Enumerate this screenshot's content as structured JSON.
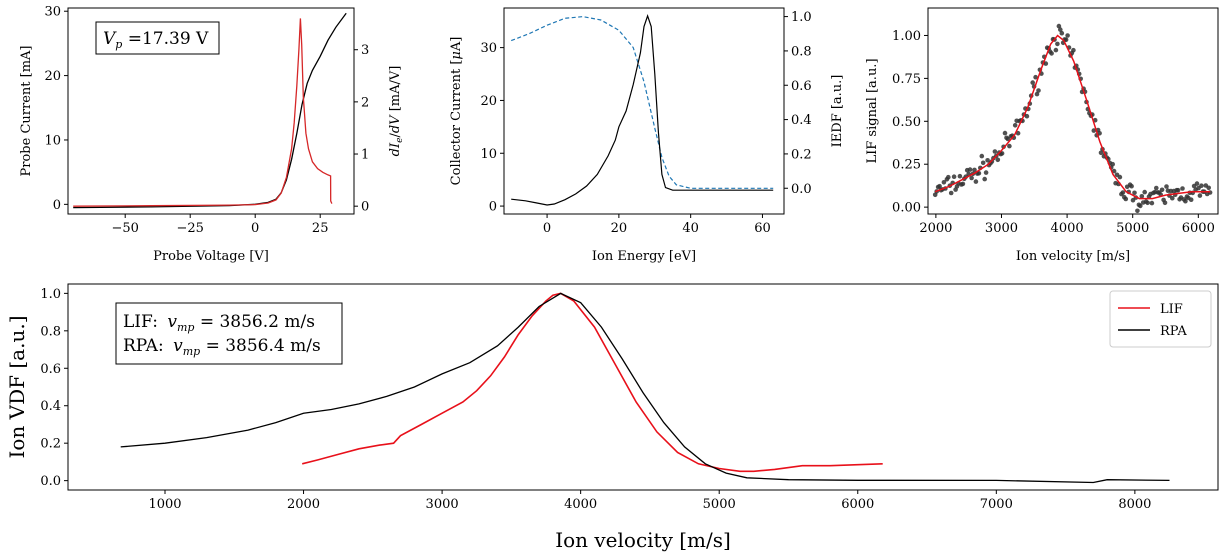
{
  "colors": {
    "red": "#d62728",
    "red2": "#e8101a",
    "black": "#000000",
    "blue": "#1f77b4",
    "scatter": "#333333"
  },
  "chart_data": [
    {
      "type": "line",
      "id": "probe",
      "xlabel": "Probe Voltage [V]",
      "ylabel": "Probe Current [mA]",
      "ylabel2_parts": {
        "d": "d",
        "I": "I",
        "sub": "e",
        "slash": "/",
        "d2": "d",
        "V": "V",
        "unit": " [mA/V]"
      },
      "annotation": {
        "sym": "V",
        "sub": "p",
        "text": " =17.39 V"
      },
      "xlim": [
        -72,
        38
      ],
      "ylim": [
        -1.5,
        30.5
      ],
      "y2lim": [
        -0.15,
        3.8
      ],
      "xticks": [
        -75,
        -50,
        -25,
        0,
        25
      ],
      "xtick_labels": [
        "−75",
        "−50",
        "−25",
        "0",
        "25"
      ],
      "yticks": [
        0,
        10,
        20,
        30
      ],
      "ytick_labels": [
        "0",
        "10",
        "20",
        "30"
      ],
      "y2ticks": [
        0,
        1,
        2,
        3
      ],
      "y2tick_labels": [
        "0",
        "1",
        "2",
        "3"
      ],
      "series": [
        {
          "axis": "left",
          "color": "black",
          "x": [
            -70,
            -40,
            -10,
            0,
            5,
            8,
            10,
            12,
            14,
            16,
            18,
            20,
            22,
            25,
            28,
            31,
            35
          ],
          "y": [
            -0.5,
            -0.4,
            -0.2,
            0,
            0.3,
            0.8,
            1.8,
            3.8,
            7,
            11,
            15.5,
            18.8,
            20.8,
            23,
            25.5,
            27.5,
            29.7
          ]
        },
        {
          "axis": "right",
          "color": "red",
          "x": [
            -70,
            -40,
            -10,
            0,
            5,
            8,
            10,
            12,
            14,
            15,
            16,
            16.8,
            17.39,
            17.9,
            18.5,
            19.5,
            20.5,
            22,
            24,
            26,
            28,
            29,
            29.05,
            29.5
          ],
          "y": [
            0,
            0.01,
            0.02,
            0.03,
            0.06,
            0.12,
            0.25,
            0.55,
            1.1,
            1.6,
            2.3,
            3.0,
            3.6,
            3.1,
            2.1,
            1.4,
            1.1,
            0.85,
            0.72,
            0.65,
            0.6,
            0.58,
            0.1,
            0.05
          ]
        }
      ]
    },
    {
      "type": "line",
      "id": "rpa",
      "xlabel": "Ion Energy [eV]",
      "ylabel_parts": {
        "pre": "Collector Current [",
        "mu": "μ",
        "post": "A]"
      },
      "ylabel2": "IEDF [a.u.]",
      "xlim": [
        -12,
        66
      ],
      "ylim": [
        -1.5,
        37.5
      ],
      "y2lim": [
        -0.15,
        1.05
      ],
      "xticks": [
        0,
        20,
        40,
        60
      ],
      "xtick_labels": [
        "0",
        "20",
        "40",
        "60"
      ],
      "yticks": [
        0,
        10,
        20,
        30
      ],
      "ytick_labels": [
        "0",
        "10",
        "20",
        "30"
      ],
      "y2ticks": [
        0,
        0.2,
        0.4,
        0.6,
        0.8,
        1.0
      ],
      "y2tick_labels": [
        "0.0",
        "0.2",
        "0.4",
        "0.6",
        "0.8",
        "1.0"
      ],
      "series": [
        {
          "axis": "right",
          "color": "blue",
          "dashed": true,
          "x": [
            -10,
            -5,
            0,
            5,
            10,
            15,
            20,
            24,
            27,
            30,
            32,
            34,
            36,
            40,
            50,
            63
          ],
          "y": [
            0.86,
            0.9,
            0.95,
            0.99,
            1.0,
            0.98,
            0.92,
            0.82,
            0.62,
            0.35,
            0.18,
            0.07,
            0.02,
            0.0,
            0.0,
            0.0
          ]
        },
        {
          "axis": "left",
          "color": "black",
          "x": [
            -10,
            -6,
            -3,
            0,
            2,
            5,
            8,
            11,
            14,
            17,
            19,
            20,
            22,
            24,
            26,
            27,
            28,
            29,
            30,
            31,
            32,
            33,
            35,
            40,
            50,
            60,
            63
          ],
          "y": [
            1.3,
            1.0,
            0.6,
            0.2,
            0.4,
            1.2,
            2.3,
            3.8,
            6,
            9.5,
            12.5,
            15,
            18,
            23,
            29,
            34,
            36,
            34,
            25,
            14,
            6,
            3.5,
            3.0,
            3.0,
            3.0,
            3.0,
            3.0
          ]
        }
      ]
    },
    {
      "type": "scatter",
      "id": "lif",
      "xlabel": "Ion velocity [m/s]",
      "ylabel": "LIF signal [a.u.]",
      "xlim": [
        1880,
        6300
      ],
      "ylim": [
        -0.04,
        1.16
      ],
      "xticks": [
        2000,
        3000,
        4000,
        5000,
        6000
      ],
      "xtick_labels": [
        "2000",
        "3000",
        "4000",
        "5000",
        "6000"
      ],
      "yticks": [
        0,
        0.25,
        0.5,
        0.75,
        1.0
      ],
      "ytick_labels": [
        "0.00",
        "0.25",
        "0.50",
        "0.75",
        "1.00"
      ],
      "fit": {
        "color": "red2",
        "x": [
          1990,
          2200,
          2400,
          2600,
          2800,
          3000,
          3200,
          3400,
          3600,
          3750,
          3856,
          3950,
          4100,
          4300,
          4500,
          4700,
          4900,
          5100,
          5300,
          5500,
          5700,
          5900,
          6100,
          6180
        ],
        "y": [
          0.09,
          0.12,
          0.16,
          0.2,
          0.25,
          0.33,
          0.42,
          0.58,
          0.8,
          0.95,
          1.0,
          0.97,
          0.85,
          0.62,
          0.38,
          0.19,
          0.09,
          0.05,
          0.05,
          0.07,
          0.08,
          0.09,
          0.09,
          0.09
        ]
      },
      "scatter": {
        "color": "scatter",
        "x_min": 1990,
        "x_max": 6180,
        "count": 190,
        "noise": 0.055
      }
    },
    {
      "type": "line",
      "id": "vdf",
      "xlabel": "Ion velocity [m/s]",
      "ylabel": "Ion VDF [a.u.]",
      "annotation_lines": [
        {
          "label": "LIF:",
          "sym": "v",
          "sub": "mp",
          "val": " = 3856.2 m/s"
        },
        {
          "label": "RPA:",
          "sym": "v",
          "sub": "mp",
          "val": " = 3856.4 m/s"
        }
      ],
      "xlim": [
        300,
        8600
      ],
      "ylim": [
        -0.05,
        1.05
      ],
      "xticks": [
        1000,
        2000,
        3000,
        4000,
        5000,
        6000,
        7000,
        8000
      ],
      "xtick_labels": [
        "1000",
        "2000",
        "3000",
        "4000",
        "5000",
        "6000",
        "7000",
        "8000"
      ],
      "yticks": [
        0,
        0.2,
        0.4,
        0.6,
        0.8,
        1.0
      ],
      "ytick_labels": [
        "0.0",
        "0.2",
        "0.4",
        "0.6",
        "0.8",
        "1.0"
      ],
      "legend": {
        "position": "top-right",
        "entries": [
          "LIF",
          "RPA"
        ]
      },
      "series": [
        {
          "name": "LIF",
          "color": "red2",
          "x": [
            1990,
            2100,
            2250,
            2400,
            2550,
            2650,
            2700,
            2850,
            3000,
            3150,
            3250,
            3350,
            3450,
            3550,
            3650,
            3750,
            3800,
            3856,
            3950,
            4100,
            4250,
            4400,
            4550,
            4700,
            4850,
            5000,
            5150,
            5250,
            5400,
            5600,
            5800,
            6000,
            6180
          ],
          "y": [
            0.09,
            0.11,
            0.14,
            0.17,
            0.19,
            0.2,
            0.24,
            0.3,
            0.36,
            0.42,
            0.48,
            0.56,
            0.66,
            0.78,
            0.88,
            0.96,
            0.99,
            1.0,
            0.96,
            0.82,
            0.62,
            0.42,
            0.26,
            0.15,
            0.09,
            0.065,
            0.05,
            0.05,
            0.06,
            0.08,
            0.08,
            0.085,
            0.09
          ]
        },
        {
          "name": "RPA",
          "color": "black",
          "x": [
            680,
            1000,
            1300,
            1600,
            1800,
            2000,
            2200,
            2400,
            2600,
            2800,
            3000,
            3200,
            3400,
            3550,
            3700,
            3856,
            4000,
            4150,
            4300,
            4450,
            4600,
            4750,
            4900,
            5050,
            5200,
            5500,
            6000,
            7000,
            7700,
            7800,
            8250
          ],
          "y": [
            0.18,
            0.2,
            0.23,
            0.27,
            0.31,
            0.36,
            0.38,
            0.41,
            0.45,
            0.5,
            0.57,
            0.63,
            0.72,
            0.82,
            0.93,
            1.0,
            0.95,
            0.82,
            0.65,
            0.47,
            0.31,
            0.18,
            0.09,
            0.04,
            0.015,
            0.005,
            0.002,
            0.001,
            -0.01,
            0.005,
            0.001
          ]
        }
      ]
    }
  ]
}
